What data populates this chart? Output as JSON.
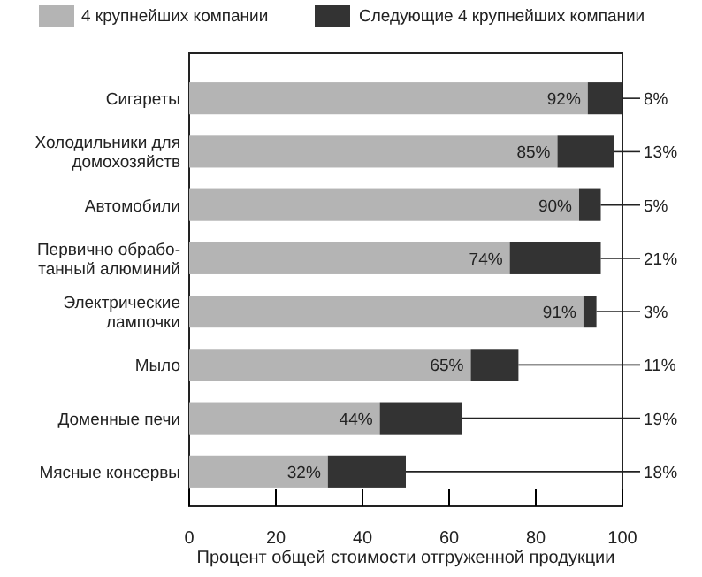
{
  "chart_data": {
    "type": "bar",
    "orientation": "horizontal",
    "stacked": true,
    "categories": [
      "Сигареты",
      "Холодильники для\nдомохозяйств",
      "Автомобили",
      "Первично обрабо-\nтанный алюминий",
      "Электрические\nлампочки",
      "Мыло",
      "Доменные печи",
      "Мясные консервы"
    ],
    "series": [
      {
        "name": "4 крупнейших компании",
        "color": "#b4b4b4",
        "values": [
          92,
          85,
          90,
          74,
          91,
          65,
          44,
          32
        ],
        "value_labels": [
          "92%",
          "85%",
          "90%",
          "74%",
          "91%",
          "65%",
          "44%",
          "32%"
        ]
      },
      {
        "name": "Следующие 4 крупнейших компании",
        "color": "#333333",
        "values": [
          8,
          13,
          5,
          21,
          3,
          11,
          19,
          18
        ],
        "value_labels": [
          "8%",
          "13%",
          "5%",
          "21%",
          "3%",
          "11%",
          "19%",
          "18%"
        ]
      }
    ],
    "xlim": [
      0,
      100
    ],
    "xticks": [
      0,
      20,
      40,
      60,
      80,
      100
    ],
    "xlabel": "Процент общей стоимости отгруженной продукции",
    "legend": "top",
    "grid": false
  }
}
